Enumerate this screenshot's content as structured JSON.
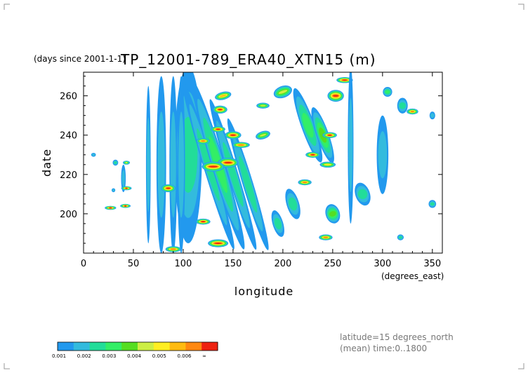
{
  "chart_data": {
    "type": "heatmap",
    "title": "TP_12001-789_ERA40_XTN15 (m)",
    "title_prefix": "(days since 2001-1-1)",
    "xlabel": "longitude",
    "xunits": "(degrees_east)",
    "ylabel": "date",
    "xlim": [
      0,
      360
    ],
    "ylim": [
      180,
      272
    ],
    "xticks": [
      0,
      50,
      100,
      150,
      200,
      250,
      300,
      350
    ],
    "yticks": [
      200,
      220,
      240,
      260
    ],
    "grid": false,
    "legend": "bottom-left colorbar",
    "info_lines": [
      "latitude=15 degrees_north",
      "(mean) time:0..1800"
    ],
    "colorbar": {
      "labels": [
        "0.001",
        "0.002",
        "0.003",
        "0.004",
        "0.005",
        "0.006",
        "∞"
      ],
      "colors": [
        "#2299ee",
        "#33bbdd",
        "#22dd99",
        "#33ee66",
        "#55dd22",
        "#ccee44",
        "#ffee22",
        "#ffbb11",
        "#ff8811",
        "#ee2211"
      ]
    },
    "features": [
      {
        "lon": 105,
        "date": 230,
        "dlon": 25,
        "ddate": 90,
        "slope": 0,
        "level": 3
      },
      {
        "lon": 78,
        "date": 225,
        "dlon": 8,
        "ddate": 90,
        "slope": 0,
        "level": 2
      },
      {
        "lon": 90,
        "date": 225,
        "dlon": 6,
        "ddate": 90,
        "slope": 0,
        "level": 2
      },
      {
        "lon": 98,
        "date": 225,
        "dlon": 6,
        "ddate": 90,
        "slope": 0,
        "level": 2
      },
      {
        "lon": 125,
        "date": 225,
        "dlon": 8,
        "ddate": 90,
        "slope": -0.6,
        "level": 3
      },
      {
        "lon": 135,
        "date": 225,
        "dlon": 10,
        "ddate": 90,
        "slope": -0.6,
        "level": 4
      },
      {
        "lon": 150,
        "date": 220,
        "dlon": 8,
        "ddate": 80,
        "slope": -0.6,
        "level": 3
      },
      {
        "lon": 165,
        "date": 215,
        "dlon": 8,
        "ddate": 70,
        "slope": -0.6,
        "level": 3
      },
      {
        "lon": 145,
        "date": 226,
        "dlon": 12,
        "ddate": 5,
        "slope": 0,
        "level": 10
      },
      {
        "lon": 130,
        "date": 224,
        "dlon": 14,
        "ddate": 5,
        "slope": 0,
        "level": 10
      },
      {
        "lon": 150,
        "date": 240,
        "dlon": 8,
        "ddate": 4,
        "slope": 0,
        "level": 10
      },
      {
        "lon": 158,
        "date": 235,
        "dlon": 10,
        "ddate": 3,
        "slope": 0,
        "level": 9
      },
      {
        "lon": 135,
        "date": 243,
        "dlon": 6,
        "ddate": 3,
        "slope": 0,
        "level": 10
      },
      {
        "lon": 120,
        "date": 237,
        "dlon": 6,
        "ddate": 3,
        "slope": 0,
        "level": 9
      },
      {
        "lon": 85,
        "date": 213,
        "dlon": 6,
        "ddate": 4,
        "slope": 0,
        "level": 10
      },
      {
        "lon": 120,
        "date": 196,
        "dlon": 6,
        "ddate": 3,
        "slope": 0,
        "level": 10
      },
      {
        "lon": 135,
        "date": 185,
        "dlon": 12,
        "ddate": 4,
        "slope": 0,
        "level": 10
      },
      {
        "lon": 90,
        "date": 182,
        "dlon": 8,
        "ddate": 3,
        "slope": 0,
        "level": 9
      },
      {
        "lon": 137,
        "date": 253,
        "dlon": 6,
        "ddate": 4,
        "slope": 0,
        "level": 10
      },
      {
        "lon": 140,
        "date": 260,
        "dlon": 10,
        "ddate": 4,
        "slope": -0.5,
        "level": 8
      },
      {
        "lon": 180,
        "date": 255,
        "dlon": 8,
        "ddate": 3,
        "slope": 0,
        "level": 6
      },
      {
        "lon": 180,
        "date": 240,
        "dlon": 10,
        "ddate": 4,
        "slope": -0.6,
        "level": 6
      },
      {
        "lon": 200,
        "date": 262,
        "dlon": 14,
        "ddate": 6,
        "slope": -0.7,
        "level": 6
      },
      {
        "lon": 225,
        "date": 245,
        "dlon": 10,
        "ddate": 40,
        "slope": -0.7,
        "level": 4
      },
      {
        "lon": 240,
        "date": 240,
        "dlon": 8,
        "ddate": 30,
        "slope": -0.7,
        "level": 5
      },
      {
        "lon": 253,
        "date": 260,
        "dlon": 8,
        "ddate": 6,
        "slope": 0,
        "level": 10
      },
      {
        "lon": 262,
        "date": 268,
        "dlon": 8,
        "ddate": 3,
        "slope": 0,
        "level": 10
      },
      {
        "lon": 247,
        "date": 240,
        "dlon": 6,
        "ddate": 3,
        "slope": 0,
        "level": 10
      },
      {
        "lon": 230,
        "date": 230,
        "dlon": 6,
        "ddate": 3,
        "slope": 0,
        "level": 10
      },
      {
        "lon": 222,
        "date": 216,
        "dlon": 6,
        "ddate": 3,
        "slope": 0,
        "level": 9
      },
      {
        "lon": 245,
        "date": 225,
        "dlon": 10,
        "ddate": 3,
        "slope": 0,
        "level": 7
      },
      {
        "lon": 250,
        "date": 200,
        "dlon": 10,
        "ddate": 10,
        "slope": -0.6,
        "level": 5
      },
      {
        "lon": 243,
        "date": 188,
        "dlon": 6,
        "ddate": 3,
        "slope": 0,
        "level": 9
      },
      {
        "lon": 210,
        "date": 205,
        "dlon": 10,
        "ddate": 16,
        "slope": -0.6,
        "level": 3
      },
      {
        "lon": 195,
        "date": 195,
        "dlon": 8,
        "ddate": 14,
        "slope": -0.6,
        "level": 3
      },
      {
        "lon": 268,
        "date": 235,
        "dlon": 4,
        "ddate": 80,
        "slope": 0,
        "level": 2
      },
      {
        "lon": 280,
        "date": 210,
        "dlon": 12,
        "ddate": 12,
        "slope": -0.7,
        "level": 3
      },
      {
        "lon": 300,
        "date": 230,
        "dlon": 10,
        "ddate": 40,
        "slope": 0,
        "level": 2
      },
      {
        "lon": 320,
        "date": 255,
        "dlon": 8,
        "ddate": 8,
        "slope": 0,
        "level": 3
      },
      {
        "lon": 330,
        "date": 252,
        "dlon": 4,
        "ddate": 3,
        "slope": 0,
        "level": 9
      },
      {
        "lon": 305,
        "date": 262,
        "dlon": 6,
        "ddate": 5,
        "slope": 0,
        "level": 4
      },
      {
        "lon": 318,
        "date": 188,
        "dlon": 4,
        "ddate": 3,
        "slope": 0,
        "level": 3
      },
      {
        "lon": 350,
        "date": 205,
        "dlon": 5,
        "ddate": 4,
        "slope": 0,
        "level": 3
      },
      {
        "lon": 350,
        "date": 250,
        "dlon": 4,
        "ddate": 4,
        "slope": 0,
        "level": 2
      },
      {
        "lon": 40,
        "date": 218,
        "dlon": 3,
        "ddate": 14,
        "slope": 0,
        "level": 2
      },
      {
        "lon": 43,
        "date": 213,
        "dlon": 2,
        "ddate": 2,
        "slope": 0,
        "level": 10
      },
      {
        "lon": 42,
        "date": 204,
        "dlon": 2,
        "ddate": 2,
        "slope": 0,
        "level": 10
      },
      {
        "lon": 43,
        "date": 226,
        "dlon": 2,
        "ddate": 2,
        "slope": 0,
        "level": 6
      },
      {
        "lon": 27,
        "date": 203,
        "dlon": 3,
        "ddate": 2,
        "slope": 0,
        "level": 10
      },
      {
        "lon": 32,
        "date": 226,
        "dlon": 3,
        "ddate": 3,
        "slope": 0,
        "level": 3
      },
      {
        "lon": 30,
        "date": 212,
        "dlon": 2,
        "ddate": 2,
        "slope": 0,
        "level": 2
      },
      {
        "lon": 65,
        "date": 225,
        "dlon": 3,
        "ddate": 80,
        "slope": 0,
        "level": 2
      },
      {
        "lon": 10,
        "date": 230,
        "dlon": 3,
        "ddate": 2,
        "slope": 0,
        "level": 2
      }
    ]
  }
}
